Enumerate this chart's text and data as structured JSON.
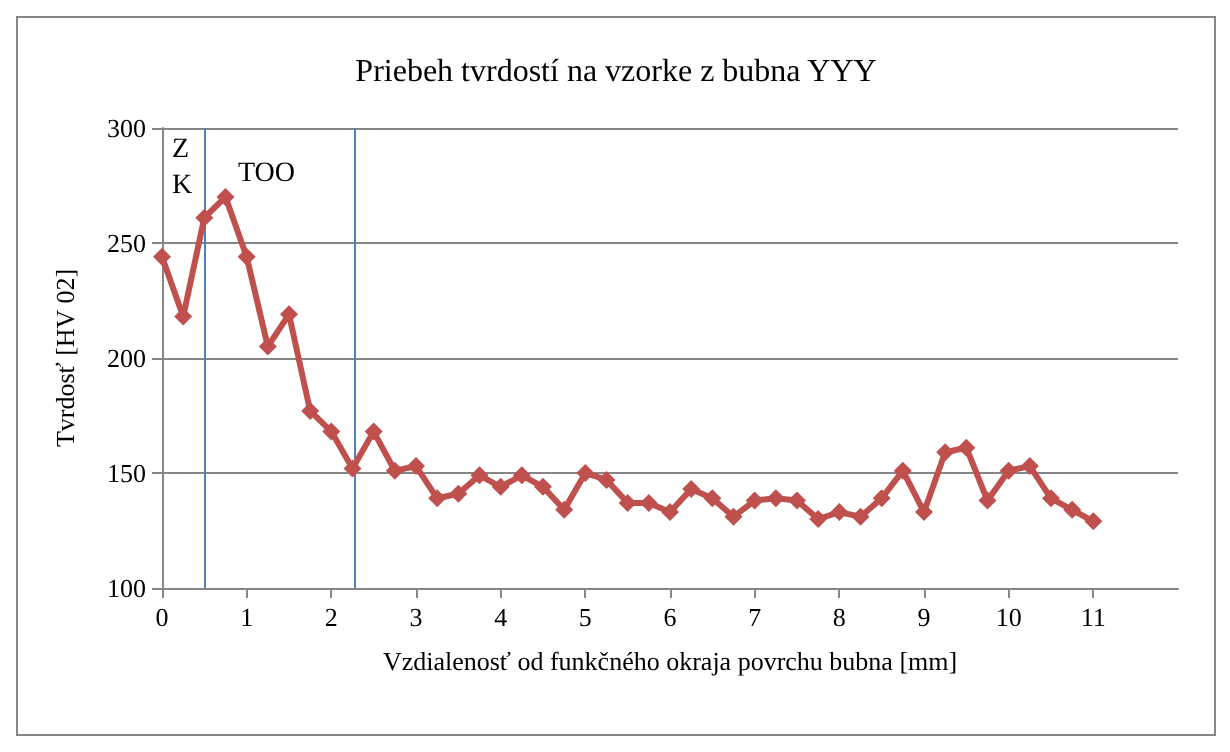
{
  "chart_data": {
    "type": "line",
    "title": "Priebeh tvrdostí na vzorke z bubna YYY",
    "xlabel": "Vzdialenosť od funkčného okraja povrchu bubna [mm]",
    "ylabel": "Tvrdosť [HV 02]",
    "x": [
      0,
      0.25,
      0.5,
      0.75,
      1,
      1.25,
      1.5,
      1.75,
      2,
      2.25,
      2.5,
      2.75,
      3,
      3.25,
      3.5,
      3.75,
      4,
      4.25,
      4.5,
      4.75,
      5,
      5.25,
      5.5,
      5.75,
      6,
      6.25,
      6.5,
      6.75,
      7,
      7.25,
      7.5,
      7.75,
      8,
      8.25,
      8.5,
      8.75,
      9,
      9.25,
      9.5,
      9.75,
      10,
      10.25,
      10.5,
      10.75,
      11
    ],
    "series": [
      {
        "color": "#c0504d",
        "values": [
          244,
          218,
          261,
          270,
          244,
          205,
          219,
          177,
          168,
          152,
          168,
          151,
          153,
          139,
          141,
          149,
          144,
          149,
          144,
          134,
          150,
          147,
          137,
          137,
          133,
          143,
          139,
          131,
          138,
          139,
          138,
          130,
          133,
          131,
          139,
          151,
          133,
          159,
          161,
          138,
          151,
          153,
          139,
          134,
          129
        ]
      }
    ],
    "xlim": [
      0,
      12
    ],
    "xticks": [
      0,
      1,
      2,
      3,
      4,
      5,
      6,
      7,
      8,
      9,
      10,
      11
    ],
    "ylim": [
      100,
      300
    ],
    "yticks": [
      100,
      150,
      200,
      250,
      300
    ],
    "grid": "y",
    "marker": "diamond",
    "line_style": "solid",
    "ref_lines": [
      {
        "axis": "x",
        "value": 0.5,
        "color": "#4f81bd"
      },
      {
        "axis": "x",
        "value": 2.27,
        "color": "#4f81bd"
      }
    ],
    "annotations": [
      "Z\nK",
      "TOO"
    ]
  }
}
